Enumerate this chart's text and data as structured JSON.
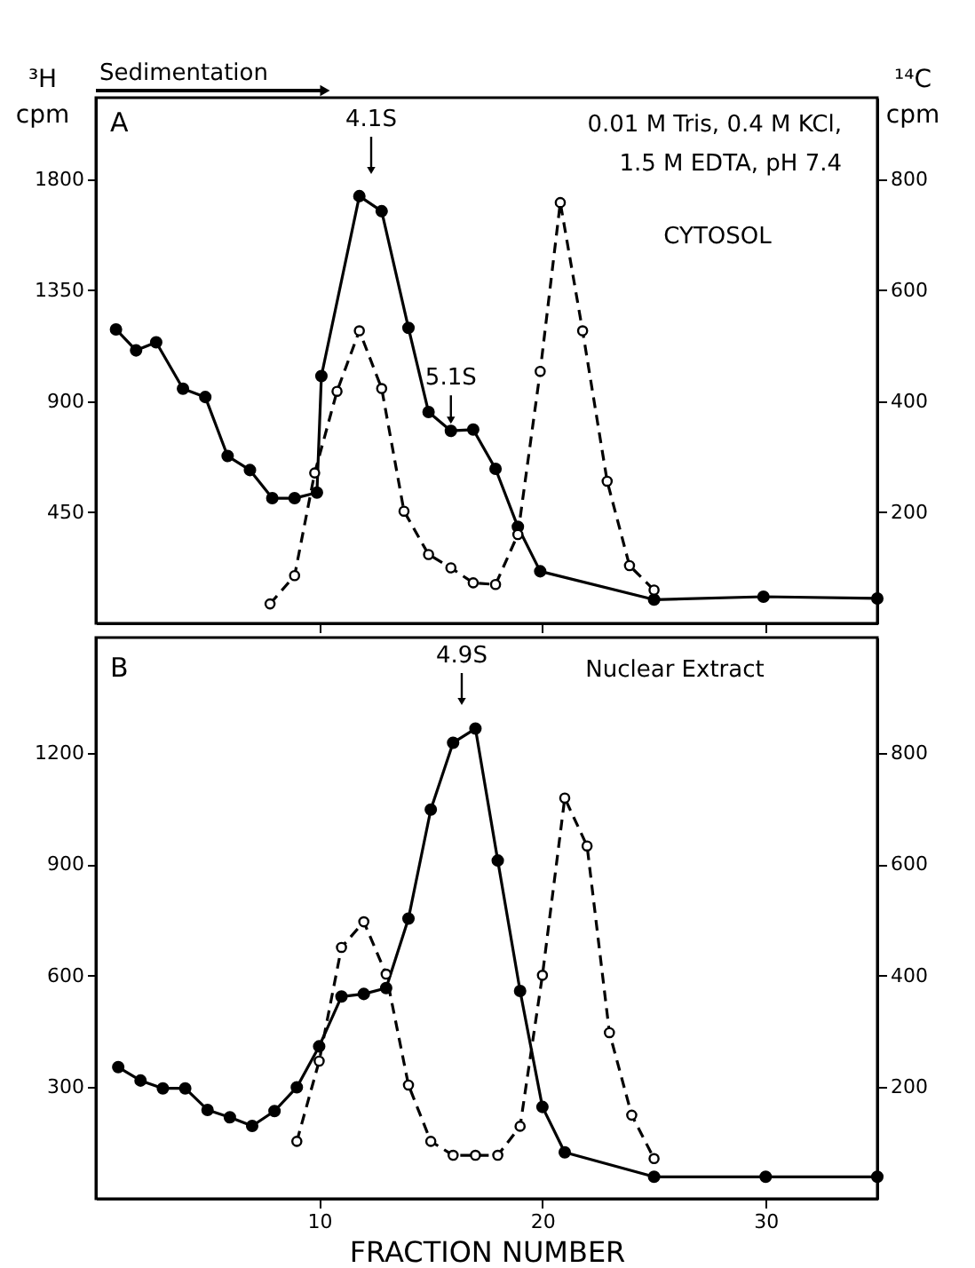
{
  "chart_data": [
    {
      "type": "line",
      "ylabel": "³H cpm",
      "y2label": "¹⁴C cpm",
      "xlim": [
        0,
        35
      ],
      "xticks": [
        10,
        20,
        30
      ],
      "ylim": [
        0,
        2130
      ],
      "yticks": [
        450,
        900,
        1350,
        1800
      ],
      "y2lim": [
        0,
        947
      ],
      "y2ticks": [
        200,
        400,
        600,
        800
      ],
      "tick_labels": "y",
      "grid": false,
      "marker": "circle",
      "annotations": [
        "A",
        "Sedimentation",
        "4.1S",
        {
          "text": "5.1S",
          "x": 15.9,
          "y": 780
        },
        "0.01 M Tris, 0.4 M KCl,",
        "1.5 M EDTA, pH 7.4",
        "CYTOSOL"
      ],
      "series": [
        {
          "color": "#000000",
          "line_style": "solid",
          "x": [
            0.9,
            1.8,
            2.7,
            3.9,
            4.9,
            5.9,
            6.9,
            7.9,
            8.9,
            9.9,
            10.1,
            11.8,
            12.8,
            14,
            14.9,
            15.9,
            16.9,
            17.9,
            18.9,
            19.9,
            25,
            29.9,
            35
          ],
          "values": [
            1191,
            1106,
            1139,
            951,
            917,
            678,
            621,
            507,
            507,
            530,
            1002,
            1731,
            1670,
            1197,
            856,
            780,
            785,
            626,
            391,
            211,
            96,
            108,
            101
          ]
        },
        {
          "axis": "y2",
          "color": "#000000",
          "line_style": "dashed",
          "x": [
            7.8,
            8.9,
            9.8,
            10.8,
            11.8,
            12.8,
            13.8,
            14.9,
            15.9,
            16.9,
            17.9,
            18.9,
            19.9,
            20.8,
            21.8,
            22.9,
            23.9,
            25
          ],
          "values": [
            35,
            86,
            271,
            418,
            527,
            423,
            202,
            124,
            100,
            73,
            70,
            160,
            454,
            758,
            527,
            256,
            104,
            60
          ]
        }
      ]
    },
    {
      "type": "line",
      "xlabel": "FRACTION NUMBER",
      "xlim": [
        0,
        35
      ],
      "xticks": [
        10,
        20,
        30
      ],
      "ylim": [
        0,
        1510
      ],
      "yticks": [
        300,
        600,
        900,
        1200
      ],
      "y2lim": [
        0,
        1007
      ],
      "y2ticks": [
        200,
        400,
        600,
        800
      ],
      "grid": false,
      "marker": "circle",
      "annotations": [
        "B",
        "4.9S",
        "Nuclear Extract"
      ],
      "series": [
        {
          "color": "#000000",
          "line_style": "solid",
          "x": [
            1,
            2,
            3,
            4,
            5,
            6,
            7,
            8,
            9,
            10,
            11,
            12,
            13,
            14,
            15,
            16,
            17,
            18,
            19,
            20,
            21,
            25,
            30,
            35
          ],
          "values": [
            354,
            318,
            297,
            297,
            239,
            219,
            196,
            236,
            300,
            410,
            544,
            551,
            567,
            754,
            1047,
            1227,
            1265,
            910,
            559,
            247,
            125,
            59,
            59,
            59
          ]
        },
        {
          "axis": "y2",
          "color": "#000000",
          "line_style": "dashed",
          "x": [
            9,
            10,
            11,
            12,
            13,
            14,
            15,
            16,
            17,
            18,
            19,
            20,
            21,
            22,
            23,
            24,
            25
          ],
          "values": [
            103,
            247,
            451,
            497,
            403,
            204,
            103,
            78,
            78,
            78,
            130,
            401,
            719,
            633,
            298,
            150,
            72
          ]
        }
      ]
    }
  ]
}
